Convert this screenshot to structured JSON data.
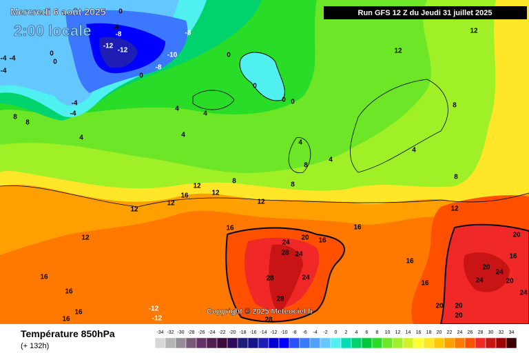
{
  "header": {
    "date": "Mercredi 6 août 2025",
    "time": "2:00 locale",
    "run": "Run GFS 12 Z du Jeudi 31 juillet 2025"
  },
  "copyright": "Copyright © 2025 Meteociel.fr",
  "footer": {
    "title": "Température 850hPa",
    "subtitle": "(+ 132h)"
  },
  "map": {
    "contour_labels": [
      0,
      -4,
      -8,
      -8,
      -12,
      -12,
      -10,
      -8,
      0,
      -4,
      -4,
      -4,
      0,
      0,
      -4,
      -4,
      0,
      0,
      0,
      0,
      12,
      12,
      4,
      4,
      8,
      8,
      4,
      4,
      4,
      4,
      4,
      8,
      8,
      8,
      8,
      8,
      12,
      12,
      16,
      12,
      12,
      12,
      12,
      16,
      16,
      12,
      20,
      16,
      24,
      28,
      24,
      20,
      16,
      16,
      28,
      24,
      16,
      24,
      24,
      20,
      20,
      28,
      20,
      20,
      20,
      28,
      24,
      16,
      16,
      -12,
      -12,
      16,
      16
    ]
  },
  "scale": {
    "ticks": [
      -34,
      -32,
      -30,
      -28,
      -26,
      -24,
      -22,
      -20,
      -18,
      -16,
      -14,
      -12,
      -10,
      -8,
      -6,
      -4,
      -2,
      0,
      2,
      4,
      6,
      8,
      10,
      12,
      14,
      16,
      18,
      20,
      22,
      24,
      26,
      28,
      30,
      32,
      34
    ],
    "colors": [
      "#d7d7d7",
      "#b4b4b4",
      "#968c96",
      "#785a78",
      "#643264",
      "#501e50",
      "#3c0a3c",
      "#2d0a5a",
      "#1e1e78",
      "#14148c",
      "#1e1eb4",
      "#0000d2",
      "#0000ff",
      "#2850ff",
      "#3c78ff",
      "#50a0ff",
      "#64c8ff",
      "#50f0f0",
      "#00dcb4",
      "#00d26e",
      "#00c83c",
      "#28dc28",
      "#6ee628",
      "#a0f028",
      "#d2f028",
      "#ffff32",
      "#ffe628",
      "#ffc800",
      "#ffa000",
      "#ff7800",
      "#ff5000",
      "#f02828",
      "#c81414",
      "#a00000",
      "#3c0000"
    ]
  }
}
